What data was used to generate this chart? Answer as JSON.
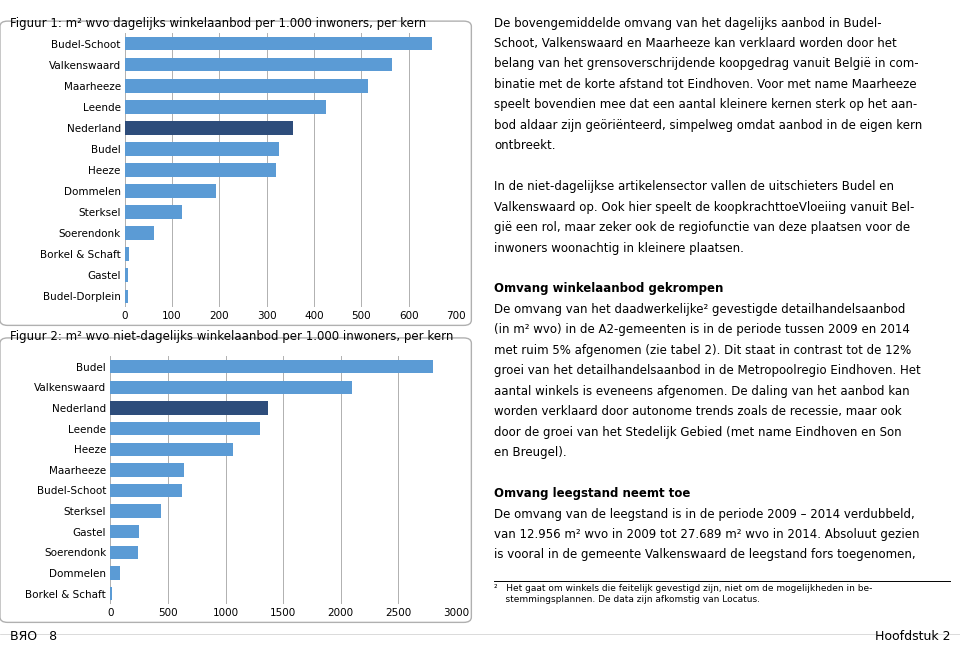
{
  "fig1_title": "Figuur 1: m² wvo dagelijks winkelaanbod per 1.000 inwoners, per kern",
  "fig1_categories": [
    "Budel-Schoot",
    "Valkenswaard",
    "Maarheeze",
    "Leende",
    "Nederland",
    "Budel",
    "Heeze",
    "Dommelen",
    "Sterksel",
    "Soerendonk",
    "Borkel & Schaft",
    "Gastel",
    "Budel-Dorplein"
  ],
  "fig1_values": [
    650,
    565,
    515,
    425,
    355,
    325,
    320,
    192,
    120,
    62,
    8,
    7,
    7
  ],
  "fig1_colors": [
    "#5b9bd5",
    "#5b9bd5",
    "#5b9bd5",
    "#5b9bd5",
    "#2e4d7b",
    "#5b9bd5",
    "#5b9bd5",
    "#5b9bd5",
    "#5b9bd5",
    "#5b9bd5",
    "#5b9bd5",
    "#5b9bd5",
    "#5b9bd5"
  ],
  "fig1_xlim": [
    0,
    700
  ],
  "fig1_xticks": [
    0,
    100,
    200,
    300,
    400,
    500,
    600,
    700
  ],
  "fig2_title": "Figuur 2: m² wvo niet-dagelijks winkelaanbod per 1.000 inwoners, per kern",
  "fig2_categories": [
    "Budel",
    "Valkenswaard",
    "Nederland",
    "Leende",
    "Heeze",
    "Maarheeze",
    "Budel-Schoot",
    "Sterksel",
    "Gastel",
    "Soerendonk",
    "Dommelen",
    "Borkel & Schaft"
  ],
  "fig2_values": [
    2800,
    2100,
    1370,
    1300,
    1060,
    640,
    620,
    440,
    250,
    240,
    85,
    18
  ],
  "fig2_colors": [
    "#5b9bd5",
    "#5b9bd5",
    "#2e4d7b",
    "#5b9bd5",
    "#5b9bd5",
    "#5b9bd5",
    "#5b9bd5",
    "#5b9bd5",
    "#5b9bd5",
    "#5b9bd5",
    "#5b9bd5",
    "#5b9bd5"
  ],
  "fig2_xlim": [
    0,
    3000
  ],
  "fig2_xticks": [
    0,
    500,
    1000,
    1500,
    2000,
    2500,
    3000
  ],
  "right_text_lines": [
    [
      "De bovengemiddelde omvang van het dagelijks aanbod in Budel-",
      false
    ],
    [
      "Schoot, Valkenswaard en Maarheeze kan verklaard worden door het",
      false
    ],
    [
      "belang van het grensoverschrijdende koopgedrag vanuit België in com-",
      false
    ],
    [
      "binatie met de korte afstand tot Eindhoven. Voor met name Maarheeze",
      false
    ],
    [
      "speelt bovendien mee dat een aantal kleinere kernen sterk op het aan-",
      false
    ],
    [
      "bod aldaar zijn geöriënteerd, simpelweg omdat aanbod in de eigen kern",
      false
    ],
    [
      "ontbreekt.",
      false
    ],
    [
      "",
      false
    ],
    [
      "In de niet-dagelijkse artikelensector vallen de uitschieters Budel en",
      false
    ],
    [
      "Valkenswaard op. Ook hier speelt de koopkrachttoeVloeiing vanuit Bel-",
      false
    ],
    [
      "gië een rol, maar zeker ook de regiofunctie van deze plaatsen voor de",
      false
    ],
    [
      "inwoners woonachtig in kleinere plaatsen.",
      false
    ],
    [
      "",
      false
    ],
    [
      "Omvang winkelaanbod gekrompen",
      true
    ],
    [
      "De omvang van het daadwerkelijke² gevestigde detailhandelsaanbod",
      false
    ],
    [
      "(in m² wvo) in de A2-gemeenten is in de periode tussen 2009 en 2014",
      false
    ],
    [
      "met ruim 5% afgenomen (zie tabel 2). Dit staat in contrast tot de 12%",
      false
    ],
    [
      "groei van het detailhandelsaanbod in de Metropoolregio Eindhoven. Het",
      false
    ],
    [
      "aantal winkels is eveneens afgenomen. De daling van het aanbod kan",
      false
    ],
    [
      "worden verklaard door autonome trends zoals de recessie, maar ook",
      false
    ],
    [
      "door de groei van het Stedelijk Gebied (met name Eindhoven en Son",
      false
    ],
    [
      "en Breugel).",
      false
    ],
    [
      "",
      false
    ],
    [
      "Omvang leegstand neemt toe",
      true
    ],
    [
      "De omvang van de leegstand is in de periode 2009 – 2014 verdubbeld,",
      false
    ],
    [
      "van 12.956 m² wvo in 2009 tot 27.689 m² wvo in 2014. Absoluut gezien",
      false
    ],
    [
      "is vooral in de gemeente Valkenswaard de leegstand fors toegenomen,",
      false
    ]
  ],
  "footnote_line": "²   Het gaat om winkels die feitelijk gevestigd zijn, niet om de mogelijkheden in be-\n    stemmingsplannen. De data zijn afkomstig van Locatus.",
  "footer_left": "BЯO   8",
  "footer_right": "Hoofdstuk 2",
  "bg_color": "#ffffff",
  "box_facecolor": "#ffffff",
  "box_edgecolor": "#b0b0b0",
  "grid_color": "#b0b0b0",
  "bar_height": 0.65,
  "title_fontsize": 8.5,
  "label_fontsize": 7.5,
  "tick_fontsize": 7.5,
  "text_fontsize": 8.5
}
